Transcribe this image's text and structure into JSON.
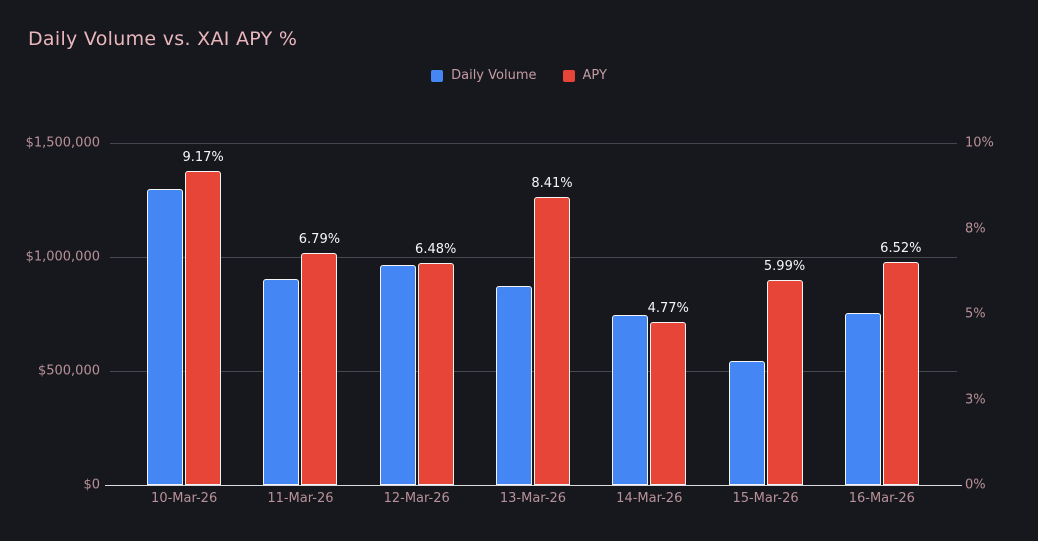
{
  "page": {
    "background": "#16181d",
    "accent_blue": "#4386f4",
    "accent_red": "#e74538"
  },
  "header": {
    "title": "Daily Volume vs. XAI APY %"
  },
  "legend": {
    "items": [
      {
        "label": "Daily Volume",
        "color": "#4386f4"
      },
      {
        "label": "APY",
        "color": "#e74538"
      }
    ]
  },
  "chart_data": {
    "type": "bar",
    "title": "Daily Volume vs. XAI APY %",
    "categories": [
      "10-Mar-26",
      "11-Mar-26",
      "12-Mar-26",
      "13-Mar-26",
      "14-Mar-26",
      "15-Mar-26",
      "16-Mar-26"
    ],
    "series": [
      {
        "name": "Daily Volume",
        "axis": "left",
        "color": "#4386f4",
        "values": [
          1300000,
          905000,
          965000,
          875000,
          745000,
          545000,
          755000
        ]
      },
      {
        "name": "APY",
        "axis": "right",
        "color": "#e74538",
        "values": [
          9.17,
          6.79,
          6.48,
          8.41,
          4.77,
          5.99,
          6.52
        ],
        "labels": [
          "9.17%",
          "6.79%",
          "6.48%",
          "8.41%",
          "4.77%",
          "5.99%",
          "6.52%"
        ]
      }
    ],
    "left_axis": {
      "min": 0,
      "max": 1500000,
      "ticks": [
        "$1,500,000",
        "$1,000,000",
        "$500,000",
        "$0"
      ]
    },
    "right_axis": {
      "min": 0,
      "max": 10,
      "ticks": [
        "10%",
        "8%",
        "5%",
        "3%",
        "0%"
      ]
    },
    "grid": true,
    "legend_position": "top"
  }
}
